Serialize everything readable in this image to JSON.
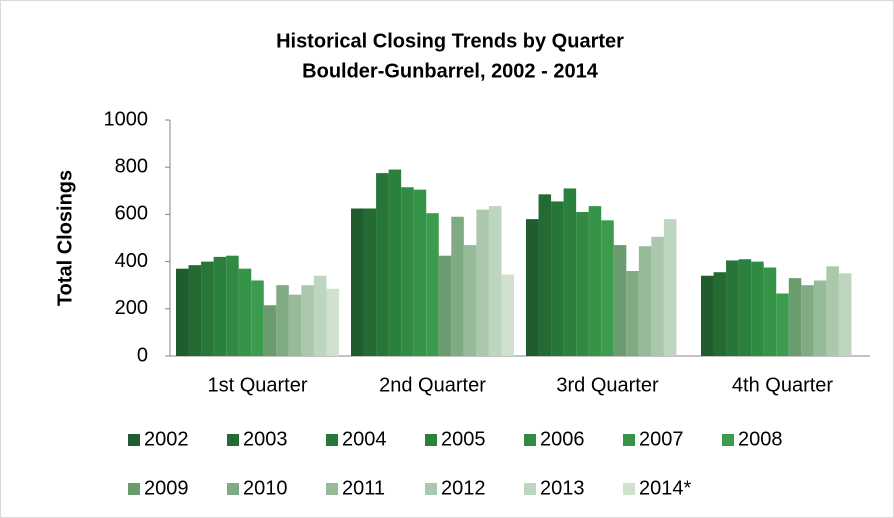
{
  "chart_data": {
    "type": "bar",
    "title": "Historical Closing Trends by Quarter",
    "subtitle": "Boulder-Gunbarrel, 2002 - 2014",
    "y_label": "Total Closings",
    "categories": [
      "1st Quarter",
      "2nd Quarter",
      "3rd Quarter",
      "4th Quarter"
    ],
    "ylim": [
      0,
      1000
    ],
    "yticks": [
      0,
      200,
      400,
      600,
      800,
      1000
    ],
    "grid": false,
    "series": [
      {
        "name": "2002",
        "color": "#1f5c2e",
        "values": [
          370,
          625,
          580,
          340
        ]
      },
      {
        "name": "2003",
        "color": "#236a33",
        "values": [
          385,
          625,
          685,
          355
        ]
      },
      {
        "name": "2004",
        "color": "#277538",
        "values": [
          400,
          775,
          655,
          405
        ]
      },
      {
        "name": "2005",
        "color": "#2b803d",
        "values": [
          420,
          790,
          710,
          410
        ]
      },
      {
        "name": "2006",
        "color": "#308a42",
        "values": [
          425,
          715,
          610,
          400
        ]
      },
      {
        "name": "2007",
        "color": "#359447",
        "values": [
          370,
          705,
          635,
          375
        ]
      },
      {
        "name": "2008",
        "color": "#3c9c4d",
        "values": [
          320,
          605,
          575,
          265
        ]
      },
      {
        "name": "2009",
        "color": "#6a9c70",
        "values": [
          215,
          425,
          470,
          330
        ]
      },
      {
        "name": "2010",
        "color": "#80aa84",
        "values": [
          300,
          590,
          360,
          300
        ]
      },
      {
        "name": "2011",
        "color": "#97ba99",
        "values": [
          260,
          470,
          465,
          320
        ]
      },
      {
        "name": "2012",
        "color": "#abc8ad",
        "values": [
          300,
          620,
          505,
          380
        ]
      },
      {
        "name": "2013",
        "color": "#bed5bf",
        "values": [
          340,
          635,
          580,
          350
        ]
      },
      {
        "name": "2014*",
        "color": "#d0e1d0",
        "values": [
          285,
          345,
          null,
          null
        ]
      }
    ]
  }
}
